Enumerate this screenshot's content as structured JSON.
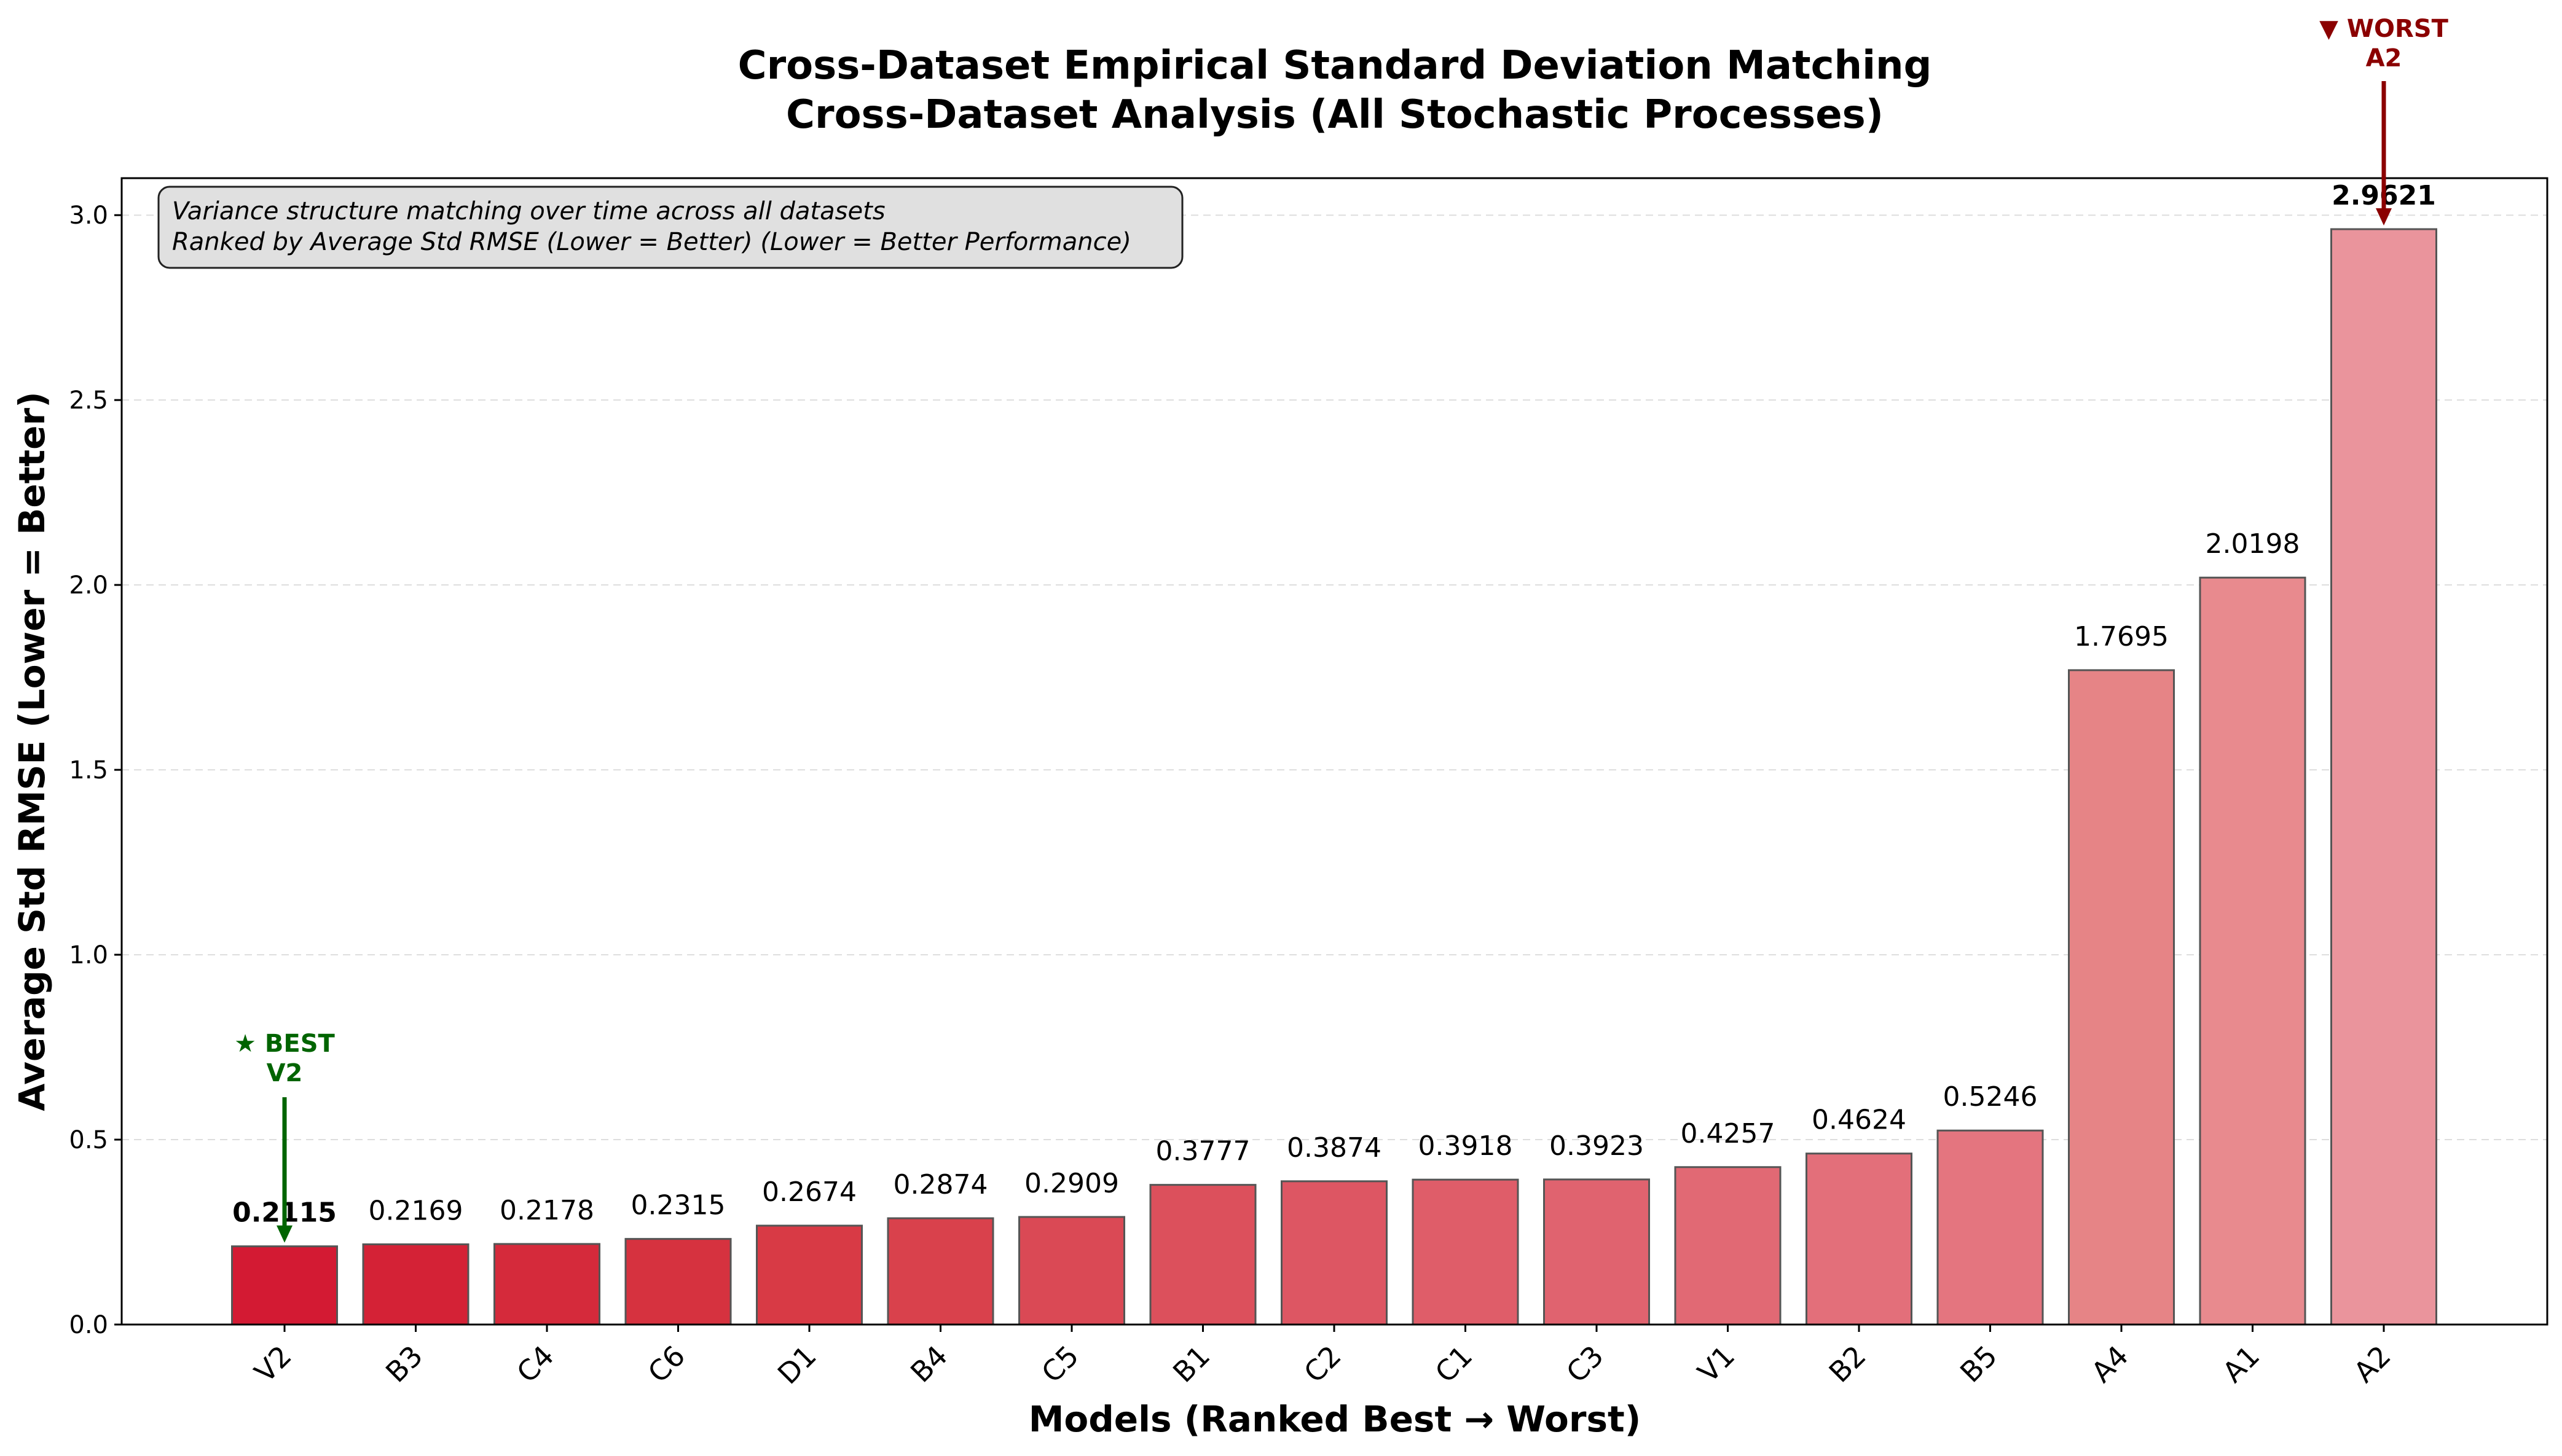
{
  "chart_data": {
    "type": "bar",
    "title": "Cross-Dataset Empirical Standard Deviation Matching",
    "subtitle": "Cross-Dataset Analysis (All Stochastic Processes)",
    "xlabel": "Models (Ranked Best → Worst)",
    "ylabel": "Average Std RMSE (Lower = Better)",
    "ylim": [
      0,
      3.1
    ],
    "yticks": [
      "0.0",
      "0.5",
      "1.0",
      "1.5",
      "2.0",
      "2.5",
      "3.0"
    ],
    "grid": "horizontal dashed",
    "categories": [
      "V2",
      "B3",
      "C4",
      "C6",
      "D1",
      "B4",
      "C5",
      "B1",
      "C2",
      "C1",
      "C3",
      "V1",
      "B2",
      "B5",
      "A4",
      "A1",
      "A2"
    ],
    "values": [
      0.2115,
      0.2169,
      0.2178,
      0.2315,
      0.2674,
      0.2874,
      0.2909,
      0.3777,
      0.3874,
      0.3918,
      0.3923,
      0.4257,
      0.4624,
      0.5246,
      1.7695,
      2.0198,
      2.9621
    ],
    "value_labels": [
      "0.2115",
      "0.2169",
      "0.2178",
      "0.2315",
      "0.2674",
      "0.2874",
      "0.2909",
      "0.3777",
      "0.3874",
      "0.3918",
      "0.3923",
      "0.4257",
      "0.4624",
      "0.5246",
      "1.7695",
      "2.0198",
      "2.9621"
    ],
    "bar_colors": [
      "#d31a33",
      "#d42236",
      "#d52a3b",
      "#d6323f",
      "#d83a45",
      "#d9414c",
      "#da4955",
      "#dc505c",
      "#dd5663",
      "#df5d69",
      "#e0636f",
      "#e16974",
      "#e36f7a",
      "#e4757f",
      "#e68486",
      "#e88a8e",
      "#ea949c"
    ],
    "annotation_box": {
      "line1": "Variance structure matching over time across all datasets",
      "line2": "Ranked by Average Std RMSE (Lower = Better) (Lower = Better Performance)"
    },
    "best_annotation": {
      "line1": "★ BEST",
      "line2": "V2",
      "model": "V2",
      "color": "#006400"
    },
    "worst_annotation": {
      "line1": "▼ WORST",
      "line2": "A2",
      "model": "A2",
      "color": "#8b0000"
    }
  }
}
